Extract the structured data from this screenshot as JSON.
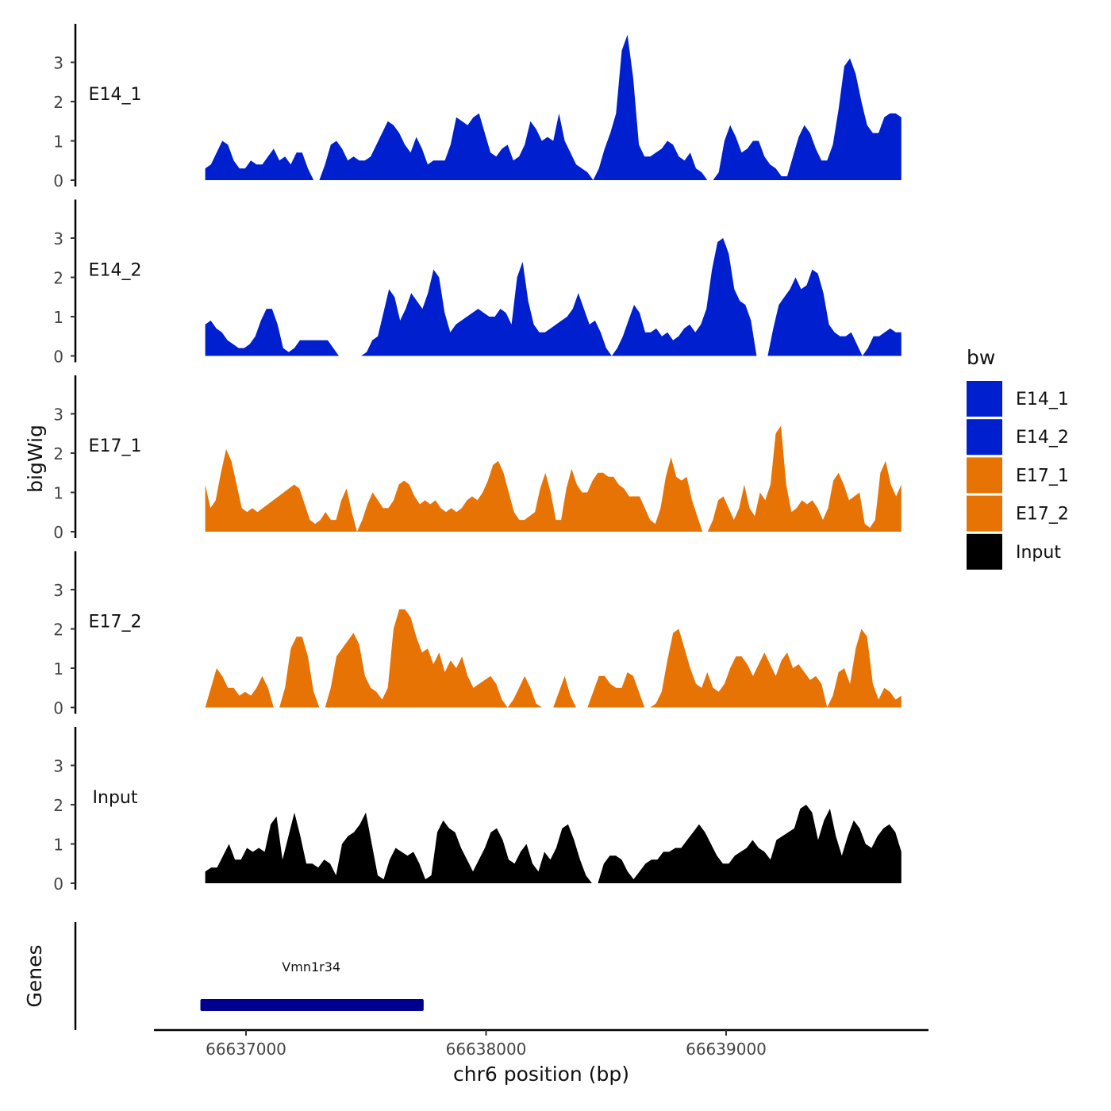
{
  "chart_data": {
    "type": "area",
    "ylabel": "bigWig",
    "xlabel": "chr6 position (bp)",
    "gene_track_label": "Genes",
    "legend": {
      "title": "bw",
      "position": "right",
      "entries": [
        {
          "label": "E14_1",
          "color": "#0020D0"
        },
        {
          "label": "E14_2",
          "color": "#0020D0"
        },
        {
          "label": "E17_1",
          "color": "#E87305"
        },
        {
          "label": "E17_2",
          "color": "#E87305"
        },
        {
          "label": "Input",
          "color": "#000000"
        }
      ]
    },
    "y_ticks": [
      "0",
      "1",
      "2",
      "3"
    ],
    "y_tick_values": [
      0,
      1,
      2,
      3
    ],
    "ylim": [
      0,
      4.0
    ],
    "x_ticks": [
      "66637000",
      "66638000",
      "66639000"
    ],
    "x_tick_values": [
      66637000,
      66638000,
      66639000
    ],
    "xlim": [
      66636570,
      66639810
    ],
    "data_range": [
      66636830,
      66639730
    ],
    "tracks": [
      {
        "name": "E14_1",
        "color": "#0020D0",
        "values": [
          0.3,
          0.4,
          0.7,
          1.0,
          0.9,
          0.5,
          0.3,
          0.3,
          0.5,
          0.4,
          0.4,
          0.6,
          0.8,
          0.5,
          0.6,
          0.4,
          0.7,
          0.7,
          0.3,
          0.0,
          0.0,
          0.4,
          0.9,
          1.0,
          0.8,
          0.5,
          0.6,
          0.5,
          0.5,
          0.6,
          0.9,
          1.2,
          1.5,
          1.4,
          1.2,
          0.9,
          0.7,
          1.1,
          0.8,
          0.4,
          0.5,
          0.5,
          0.5,
          0.9,
          1.6,
          1.5,
          1.4,
          1.6,
          1.7,
          1.2,
          0.7,
          0.6,
          0.8,
          0.9,
          0.5,
          0.6,
          0.9,
          1.5,
          1.3,
          1.0,
          1.1,
          1.0,
          1.7,
          1.0,
          0.7,
          0.4,
          0.3,
          0.2,
          0.0,
          0.3,
          0.8,
          1.2,
          1.7,
          3.3,
          3.7,
          2.6,
          0.9,
          0.6,
          0.6,
          0.7,
          0.8,
          1.0,
          0.9,
          0.6,
          0.5,
          0.7,
          0.3,
          0.2,
          0.0,
          0.0,
          0.2,
          1.0,
          1.4,
          1.1,
          0.7,
          0.8,
          1.0,
          1.0,
          0.6,
          0.4,
          0.3,
          0.1,
          0.1,
          0.6,
          1.1,
          1.4,
          1.2,
          0.8,
          0.5,
          0.5,
          0.9,
          1.8,
          2.9,
          3.1,
          2.7,
          2.0,
          1.4,
          1.2,
          1.2,
          1.6,
          1.7,
          1.7,
          1.6
        ]
      },
      {
        "name": "E14_2",
        "color": "#0020D0",
        "values": [
          0.8,
          0.9,
          0.7,
          0.6,
          0.4,
          0.3,
          0.2,
          0.2,
          0.3,
          0.5,
          0.9,
          1.2,
          1.2,
          0.8,
          0.2,
          0.1,
          0.2,
          0.4,
          0.4,
          0.4,
          0.4,
          0.4,
          0.4,
          0.2,
          0.0,
          0.0,
          0.0,
          0.0,
          0.0,
          0.1,
          0.4,
          0.5,
          1.1,
          1.7,
          1.5,
          0.9,
          1.2,
          1.6,
          1.4,
          1.2,
          1.6,
          2.2,
          2.0,
          1.1,
          0.6,
          0.8,
          0.9,
          1.0,
          1.1,
          1.2,
          1.1,
          1.0,
          1.0,
          1.2,
          1.1,
          0.8,
          2.0,
          2.4,
          1.4,
          0.8,
          0.6,
          0.6,
          0.7,
          0.8,
          0.9,
          1.0,
          1.2,
          1.6,
          1.2,
          0.8,
          0.9,
          0.6,
          0.2,
          0.0,
          0.2,
          0.5,
          0.9,
          1.3,
          1.1,
          0.6,
          0.6,
          0.7,
          0.5,
          0.6,
          0.4,
          0.5,
          0.7,
          0.8,
          0.6,
          0.8,
          1.2,
          2.2,
          2.9,
          3.0,
          2.6,
          1.7,
          1.4,
          1.3,
          0.9,
          0.0,
          0.0,
          0.0,
          0.7,
          1.3,
          1.5,
          1.7,
          2.0,
          1.7,
          1.8,
          2.2,
          2.1,
          1.6,
          0.8,
          0.6,
          0.5,
          0.5,
          0.6,
          0.3,
          0.0,
          0.2,
          0.5,
          0.5,
          0.6,
          0.7,
          0.6,
          0.6
        ]
      },
      {
        "name": "E17_1",
        "color": "#E87305",
        "values": [
          1.2,
          0.6,
          0.8,
          1.5,
          2.1,
          1.8,
          1.2,
          0.6,
          0.5,
          0.6,
          0.5,
          0.6,
          0.7,
          0.8,
          0.9,
          1.0,
          1.1,
          1.2,
          1.1,
          0.7,
          0.3,
          0.2,
          0.3,
          0.5,
          0.3,
          0.3,
          0.8,
          1.1,
          0.5,
          0.0,
          0.3,
          0.7,
          1.0,
          0.8,
          0.6,
          0.6,
          0.8,
          1.2,
          1.3,
          1.2,
          0.9,
          0.7,
          0.8,
          0.7,
          0.8,
          0.6,
          0.5,
          0.6,
          0.5,
          0.6,
          0.8,
          0.9,
          0.8,
          1.0,
          1.3,
          1.7,
          1.8,
          1.5,
          1.0,
          0.5,
          0.3,
          0.3,
          0.4,
          0.5,
          1.1,
          1.5,
          1.0,
          0.3,
          0.3,
          1.1,
          1.6,
          1.2,
          1.0,
          1.0,
          1.3,
          1.5,
          1.5,
          1.4,
          1.4,
          1.2,
          1.1,
          0.9,
          0.9,
          0.9,
          0.6,
          0.3,
          0.2,
          0.6,
          1.4,
          1.9,
          1.4,
          1.3,
          1.4,
          0.8,
          0.4,
          0.0,
          0.0,
          0.3,
          0.8,
          0.9,
          0.6,
          0.3,
          0.6,
          1.2,
          0.6,
          0.4,
          1.0,
          0.8,
          1.2,
          2.5,
          2.7,
          1.2,
          0.5,
          0.6,
          0.8,
          0.7,
          0.8,
          0.6,
          0.3,
          0.6,
          1.3,
          1.5,
          1.2,
          0.8,
          0.9,
          1.0,
          0.2,
          0.1,
          0.3,
          1.5,
          1.8,
          1.2,
          0.9,
          1.2
        ]
      },
      {
        "name": "E17_2",
        "color": "#E87305",
        "values": [
          0.0,
          0.5,
          1.0,
          0.8,
          0.5,
          0.5,
          0.3,
          0.4,
          0.3,
          0.5,
          0.8,
          0.5,
          0.0,
          0.0,
          0.5,
          1.5,
          1.8,
          1.8,
          1.3,
          0.4,
          0.0,
          0.0,
          0.5,
          1.3,
          1.5,
          1.7,
          1.9,
          1.6,
          0.8,
          0.5,
          0.4,
          0.2,
          0.5,
          2.0,
          2.5,
          2.5,
          2.3,
          1.8,
          1.4,
          1.5,
          1.1,
          1.4,
          0.9,
          1.2,
          1.0,
          1.3,
          0.8,
          0.5,
          0.6,
          0.7,
          0.8,
          0.6,
          0.2,
          0.0,
          0.2,
          0.5,
          0.8,
          0.5,
          0.1,
          0.0,
          0.0,
          0.0,
          0.4,
          0.8,
          0.3,
          0.0,
          0.0,
          0.0,
          0.4,
          0.8,
          0.8,
          0.6,
          0.5,
          0.5,
          0.9,
          0.8,
          0.4,
          0.0,
          0.0,
          0.1,
          0.4,
          1.2,
          1.9,
          2.0,
          1.5,
          1.0,
          0.6,
          0.5,
          0.9,
          0.5,
          0.4,
          0.6,
          1.0,
          1.3,
          1.3,
          1.1,
          0.8,
          1.1,
          1.4,
          1.1,
          0.8,
          1.2,
          1.4,
          1.0,
          1.1,
          0.9,
          0.7,
          0.8,
          0.6,
          0.0,
          0.3,
          0.9,
          1.0,
          0.6,
          1.5,
          2.0,
          1.8,
          0.6,
          0.2,
          0.5,
          0.4,
          0.2,
          0.3
        ]
      },
      {
        "name": "Input",
        "color": "#000000",
        "values": [
          0.3,
          0.4,
          0.4,
          0.7,
          1.0,
          0.6,
          0.6,
          0.9,
          0.8,
          0.9,
          0.8,
          1.5,
          1.7,
          0.6,
          1.2,
          1.8,
          1.2,
          0.5,
          0.5,
          0.4,
          0.6,
          0.5,
          0.2,
          1.0,
          1.2,
          1.3,
          1.5,
          1.8,
          1.0,
          0.2,
          0.1,
          0.6,
          0.9,
          0.8,
          0.7,
          0.8,
          0.5,
          0.1,
          0.2,
          1.3,
          1.6,
          1.4,
          1.3,
          0.9,
          0.6,
          0.3,
          0.6,
          0.9,
          1.3,
          1.4,
          1.1,
          0.6,
          0.5,
          0.8,
          1.0,
          0.5,
          0.3,
          0.8,
          0.6,
          0.9,
          1.4,
          1.5,
          1.1,
          0.6,
          0.2,
          0.0,
          0.0,
          0.5,
          0.7,
          0.7,
          0.6,
          0.3,
          0.1,
          0.3,
          0.5,
          0.6,
          0.6,
          0.8,
          0.8,
          0.9,
          0.9,
          1.1,
          1.3,
          1.5,
          1.3,
          1.0,
          0.7,
          0.5,
          0.5,
          0.7,
          0.8,
          0.9,
          1.1,
          0.9,
          0.8,
          0.6,
          1.1,
          1.2,
          1.3,
          1.4,
          1.9,
          2.0,
          1.8,
          1.1,
          1.6,
          1.9,
          1.2,
          0.7,
          1.2,
          1.6,
          1.4,
          1.0,
          0.9,
          1.2,
          1.4,
          1.5,
          1.3,
          0.8
        ]
      }
    ],
    "gene": {
      "label": "Vmn1r34",
      "start": 66636810,
      "end": 66637740,
      "color": "#000090"
    }
  }
}
